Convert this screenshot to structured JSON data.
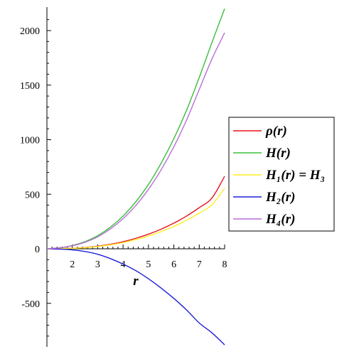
{
  "chart_data": {
    "type": "line",
    "title": "",
    "xlabel": "r",
    "ylabel": "",
    "xlim": [
      1,
      8
    ],
    "ylim": [
      -880,
      2200
    ],
    "x_ticks": [
      2,
      3,
      4,
      5,
      6,
      7,
      8
    ],
    "y_ticks": [
      -500,
      0,
      500,
      1000,
      1500,
      2000
    ],
    "grid": false,
    "legend_position": "right",
    "series": [
      {
        "name": "ρ(r)",
        "color": "#e8141e",
        "x": [
          1,
          1.5,
          2,
          2.5,
          3,
          3.5,
          4,
          4.5,
          5,
          5.5,
          6,
          6.5,
          7,
          7.5,
          8
        ],
        "y": [
          0,
          1.5,
          5,
          12,
          24,
          41,
          65,
          96,
          134,
          180,
          235,
          300,
          377,
          465,
          665
        ]
      },
      {
        "name": "H(r)",
        "color": "#3cbf3c",
        "x": [
          1,
          1.5,
          2,
          2.5,
          3,
          3.5,
          4,
          4.5,
          5,
          5.5,
          6,
          6.5,
          7,
          7.5,
          8
        ],
        "y": [
          0,
          10,
          30,
          66,
          120,
          198,
          300,
          430,
          590,
          785,
          1010,
          1270,
          1570,
          1890,
          2200
        ]
      },
      {
        "name": "H₁(r) = H₃",
        "color": "#ffee22",
        "x": [
          1,
          1.5,
          2,
          2.5,
          3,
          3.5,
          4,
          4.5,
          5,
          5.5,
          6,
          6.5,
          7,
          7.5,
          8
        ],
        "y": [
          0,
          1.3,
          4.5,
          10.5,
          21,
          36,
          57,
          84,
          117,
          157,
          205,
          261,
          327,
          403,
          555
        ]
      },
      {
        "name": "H₂(r)",
        "color": "#1f1fd8",
        "x": [
          1,
          1.5,
          2,
          2.5,
          3,
          3.5,
          4,
          4.5,
          5,
          5.5,
          6,
          6.5,
          7,
          7.5,
          8
        ],
        "y": [
          0,
          -3,
          -10,
          -25,
          -50,
          -90,
          -140,
          -200,
          -275,
          -360,
          -455,
          -560,
          -680,
          -770,
          -880
        ]
      },
      {
        "name": "H₄(r)",
        "color": "#b86fd6",
        "x": [
          1,
          1.5,
          2,
          2.5,
          3,
          3.5,
          4,
          4.5,
          5,
          5.5,
          6,
          6.5,
          7,
          7.5,
          8
        ],
        "y": [
          0,
          9,
          28,
          60,
          110,
          182,
          276,
          396,
          545,
          725,
          935,
          1180,
          1460,
          1740,
          1980
        ]
      }
    ]
  }
}
